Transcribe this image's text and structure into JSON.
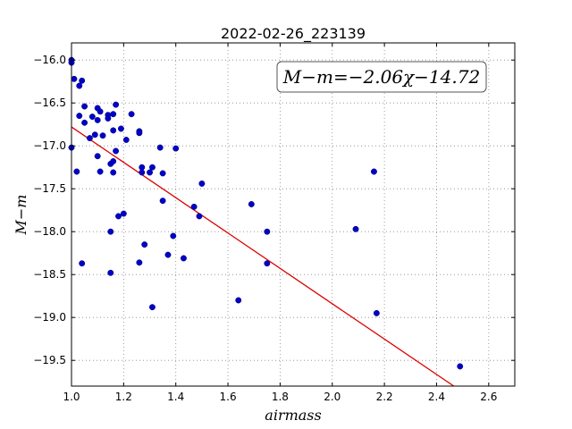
{
  "chart_data": {
    "type": "scatter",
    "title": "2022-02-26_223139",
    "xlabel": "airmass",
    "ylabel": "M−m",
    "annotation": "M−m=−2.06χ−14.72",
    "xlim": [
      1.0,
      2.7
    ],
    "ylim": [
      -19.8,
      -15.8
    ],
    "y_inverted": false,
    "grid": true,
    "x_ticks": [
      1.0,
      1.2,
      1.4,
      1.6,
      1.8,
      2.0,
      2.2,
      2.4,
      2.6
    ],
    "x_tick_labels": [
      "1.0",
      "1.2",
      "1.4",
      "1.6",
      "1.8",
      "2.0",
      "2.2",
      "2.4",
      "2.6"
    ],
    "y_ticks": [
      -16.0,
      -16.5,
      -17.0,
      -17.5,
      -18.0,
      -18.5,
      -19.0,
      -19.5
    ],
    "y_tick_labels": [
      "−16.0",
      "−16.5",
      "−17.0",
      "−17.5",
      "−18.0",
      "−18.5",
      "−19.0",
      "−19.5"
    ],
    "fit": {
      "slope": -2.06,
      "intercept": -14.72,
      "x_range": [
        1.0,
        2.7
      ]
    },
    "colors": {
      "points": "#0000cc",
      "fit_line": "#dd0000",
      "grid": "#888888"
    },
    "points": [
      [
        1.0,
        -16.0
      ],
      [
        1.0,
        -16.03
      ],
      [
        1.0,
        -17.02
      ],
      [
        1.01,
        -16.22
      ],
      [
        1.02,
        -17.3
      ],
      [
        1.03,
        -16.65
      ],
      [
        1.03,
        -16.3
      ],
      [
        1.04,
        -16.24
      ],
      [
        1.04,
        -18.37
      ],
      [
        1.05,
        -16.73
      ],
      [
        1.05,
        -16.54
      ],
      [
        1.07,
        -16.91
      ],
      [
        1.08,
        -16.66
      ],
      [
        1.09,
        -16.87
      ],
      [
        1.1,
        -16.56
      ],
      [
        1.1,
        -16.7
      ],
      [
        1.1,
        -17.12
      ],
      [
        1.11,
        -16.6
      ],
      [
        1.11,
        -17.3
      ],
      [
        1.12,
        -16.88
      ],
      [
        1.14,
        -16.64
      ],
      [
        1.14,
        -16.68
      ],
      [
        1.15,
        -17.21
      ],
      [
        1.15,
        -18.0
      ],
      [
        1.15,
        -18.48
      ],
      [
        1.16,
        -16.63
      ],
      [
        1.16,
        -16.82
      ],
      [
        1.16,
        -17.18
      ],
      [
        1.16,
        -17.31
      ],
      [
        1.17,
        -16.52
      ],
      [
        1.17,
        -17.06
      ],
      [
        1.18,
        -17.82
      ],
      [
        1.19,
        -16.8
      ],
      [
        1.2,
        -17.79
      ],
      [
        1.21,
        -16.93
      ],
      [
        1.23,
        -16.63
      ],
      [
        1.26,
        -16.83
      ],
      [
        1.26,
        -16.85
      ],
      [
        1.26,
        -18.36
      ],
      [
        1.27,
        -17.25
      ],
      [
        1.27,
        -17.31
      ],
      [
        1.28,
        -18.15
      ],
      [
        1.3,
        -17.31
      ],
      [
        1.31,
        -17.25
      ],
      [
        1.31,
        -18.88
      ],
      [
        1.34,
        -17.02
      ],
      [
        1.35,
        -17.32
      ],
      [
        1.35,
        -17.64
      ],
      [
        1.37,
        -18.27
      ],
      [
        1.39,
        -18.05
      ],
      [
        1.4,
        -17.03
      ],
      [
        1.43,
        -18.31
      ],
      [
        1.47,
        -17.71
      ],
      [
        1.49,
        -17.82
      ],
      [
        1.5,
        -17.44
      ],
      [
        1.64,
        -18.8
      ],
      [
        1.69,
        -17.68
      ],
      [
        1.75,
        -18.0
      ],
      [
        1.75,
        -18.37
      ],
      [
        2.09,
        -17.97
      ],
      [
        2.16,
        -17.3
      ],
      [
        2.17,
        -18.95
      ],
      [
        2.49,
        -19.57
      ]
    ]
  }
}
